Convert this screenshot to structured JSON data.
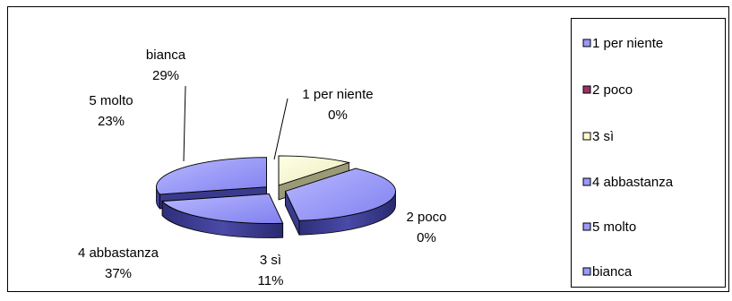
{
  "chart_data": {
    "type": "pie",
    "style": "3d-exploded",
    "categories": [
      "1 per niente",
      "2 poco",
      "3 sì",
      "4 abbastanza",
      "5 molto",
      "bianca"
    ],
    "values": [
      0,
      0,
      11,
      37,
      23,
      29
    ],
    "value_unit": "%",
    "data_labels": [
      {
        "name": "1 per niente",
        "value": "0%"
      },
      {
        "name": "2 poco",
        "value": "0%"
      },
      {
        "name": "3 sì",
        "value": "11%"
      },
      {
        "name": "4 abbastanza",
        "value": "37%"
      },
      {
        "name": "5 molto",
        "value": "23%"
      },
      {
        "name": "bianca",
        "value": "29%"
      }
    ],
    "legend": {
      "position": "right",
      "entries": [
        "1 per niente",
        "2 poco",
        "3 sì",
        "4 abbastanza",
        "5 molto",
        "bianca"
      ]
    },
    "colors": {
      "1 per niente": "#9999ff",
      "2 poco": "#993366",
      "3 sì": "#ffffcc",
      "4 abbastanza": "#9999ff",
      "5 molto": "#9999ff",
      "bianca": "#9999ff"
    },
    "title": "",
    "xlabel": "",
    "ylabel": ""
  }
}
